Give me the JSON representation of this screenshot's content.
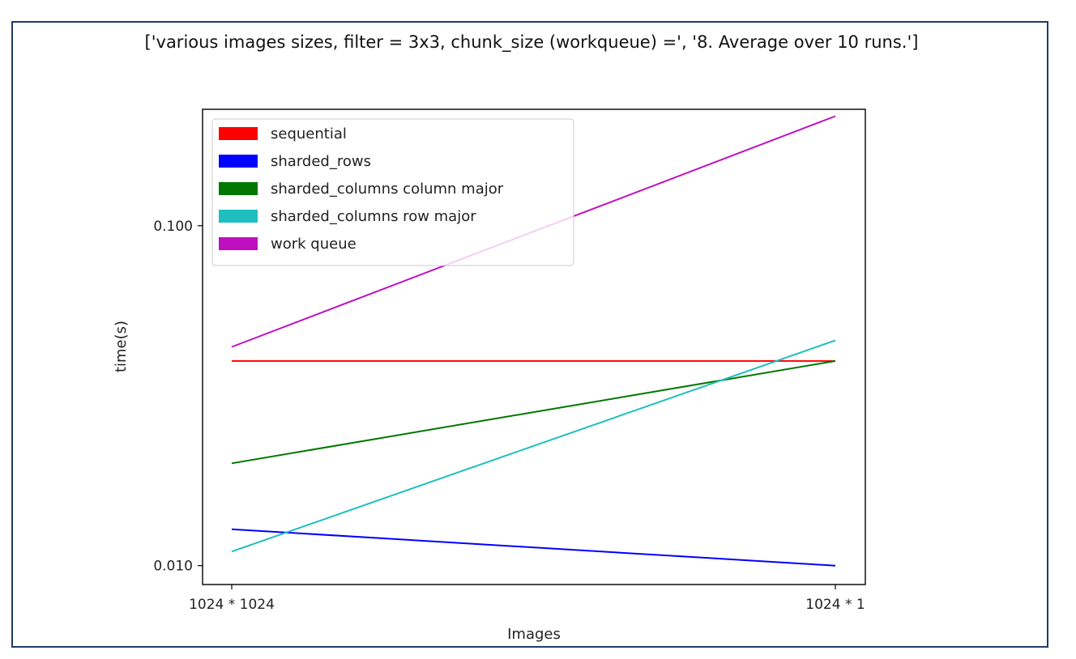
{
  "chart_data": {
    "type": "line",
    "title": "['various images sizes, filter = 3x3, chunk_size (workqueue) =', '8. Average over 10 runs.']",
    "xlabel": "Images",
    "ylabel": "time(s)",
    "categories": [
      "1024 * 1024",
      "1024 * 1"
    ],
    "y_scale": "log",
    "ylim": [
      0.0088,
      0.22
    ],
    "yticks": [
      {
        "value": 0.01,
        "label": "0.010"
      },
      {
        "value": 0.1,
        "label": "0.100"
      }
    ],
    "legend_position": "upper-left",
    "grid": false,
    "series": [
      {
        "name": "sequential",
        "color": "#ff0000",
        "values": [
          0.04,
          0.04
        ]
      },
      {
        "name": "sharded_rows",
        "color": "#0000ff",
        "values": [
          0.0128,
          0.01
        ]
      },
      {
        "name": "sharded_columns column major",
        "color": "#007700",
        "values": [
          0.02,
          0.04
        ]
      },
      {
        "name": "sharded_columns row major",
        "color": "#1fbfbf",
        "values": [
          0.011,
          0.046
        ]
      },
      {
        "name": "work queue",
        "color": "#bf10bf",
        "values": [
          0.044,
          0.21
        ]
      }
    ]
  }
}
